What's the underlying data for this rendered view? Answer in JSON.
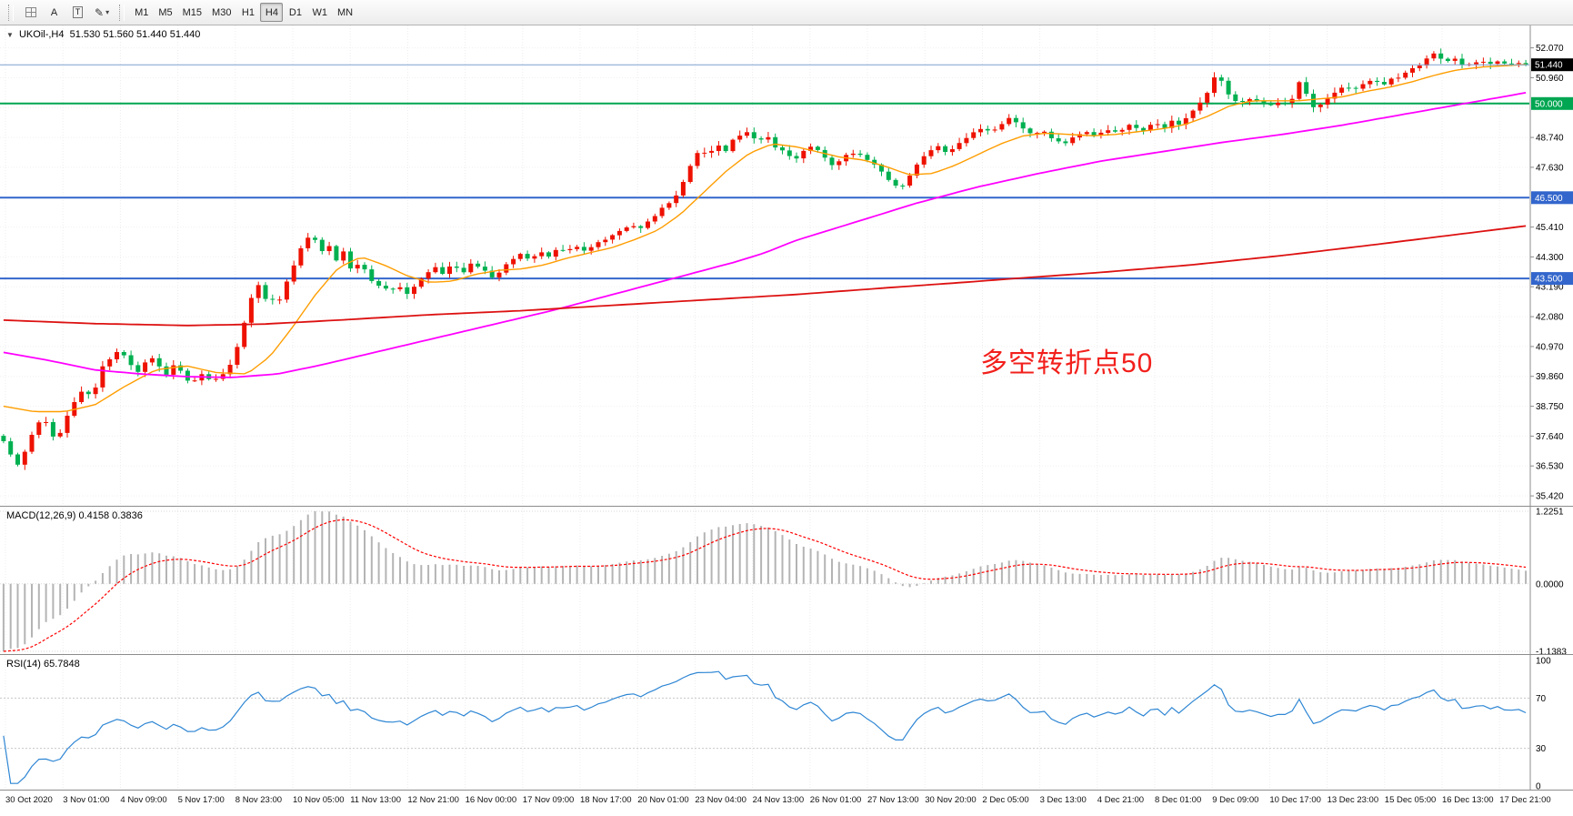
{
  "toolbar": {
    "text_tool_label": "A",
    "textbox_tool_label": "T",
    "timeframes": [
      "M1",
      "M5",
      "M15",
      "M30",
      "H1",
      "H4",
      "D1",
      "W1",
      "MN"
    ],
    "selected_timeframe": "H4"
  },
  "icons": {
    "grid": "grid-icon",
    "pen": "✎",
    "caret": "▾",
    "collapse": "▼"
  },
  "chart": {
    "symbol_title": "UKOil-,H4",
    "ohlc": "51.530 51.560 51.440 51.440",
    "annotation": {
      "text": "多空转折点50",
      "color": "#f2201c"
    }
  },
  "indicators": {
    "macd": {
      "label": "MACD(12,26,9) 0.4158 0.3836"
    },
    "rsi": {
      "label": "RSI(14) 65.7848"
    }
  },
  "chart_data": {
    "type": "candlestick",
    "symbol": "UKOil-",
    "timeframe": "H4",
    "bars": 216,
    "price_range_visible": [
      35.05,
      52.9
    ],
    "current": {
      "open": 51.53,
      "high": 51.56,
      "low": 51.44,
      "close": 51.44
    },
    "up_color": "#ee1100",
    "down_color": "#00b050",
    "close_anchors": [
      [
        0.0,
        37.4
      ],
      [
        0.005,
        36.9
      ],
      [
        0.009,
        36.55
      ],
      [
        0.014,
        37.1
      ],
      [
        0.02,
        37.9
      ],
      [
        0.026,
        38.3
      ],
      [
        0.031,
        37.8
      ],
      [
        0.035,
        37.45
      ],
      [
        0.04,
        38.2
      ],
      [
        0.047,
        38.95
      ],
      [
        0.053,
        39.4
      ],
      [
        0.058,
        39.1
      ],
      [
        0.065,
        40.2
      ],
      [
        0.072,
        40.7
      ],
      [
        0.077,
        40.9
      ],
      [
        0.083,
        40.25
      ],
      [
        0.089,
        40.0
      ],
      [
        0.095,
        40.6
      ],
      [
        0.101,
        40.35
      ],
      [
        0.107,
        39.95
      ],
      [
        0.112,
        40.3
      ],
      [
        0.118,
        39.9
      ],
      [
        0.124,
        39.6
      ],
      [
        0.13,
        39.95
      ],
      [
        0.136,
        39.65
      ],
      [
        0.142,
        39.8
      ],
      [
        0.147,
        40.1
      ],
      [
        0.151,
        40.5
      ],
      [
        0.155,
        41.2
      ],
      [
        0.159,
        42.0
      ],
      [
        0.163,
        42.8
      ],
      [
        0.167,
        43.35
      ],
      [
        0.171,
        42.6
      ],
      [
        0.175,
        42.95
      ],
      [
        0.179,
        42.35
      ],
      [
        0.184,
        43.0
      ],
      [
        0.189,
        43.8
      ],
      [
        0.194,
        44.5
      ],
      [
        0.199,
        45.0
      ],
      [
        0.203,
        45.25
      ],
      [
        0.208,
        44.4
      ],
      [
        0.213,
        44.8
      ],
      [
        0.218,
        44.15
      ],
      [
        0.223,
        44.5
      ],
      [
        0.228,
        43.8
      ],
      [
        0.234,
        44.1
      ],
      [
        0.24,
        43.5
      ],
      [
        0.247,
        43.25
      ],
      [
        0.253,
        43.0
      ],
      [
        0.259,
        43.2
      ],
      [
        0.265,
        42.95
      ],
      [
        0.271,
        43.3
      ],
      [
        0.277,
        43.65
      ],
      [
        0.283,
        43.9
      ],
      [
        0.289,
        43.7
      ],
      [
        0.295,
        44.0
      ],
      [
        0.302,
        43.7
      ],
      [
        0.308,
        44.1
      ],
      [
        0.315,
        43.8
      ],
      [
        0.322,
        43.55
      ],
      [
        0.328,
        43.85
      ],
      [
        0.333,
        44.2
      ],
      [
        0.339,
        44.4
      ],
      [
        0.345,
        44.15
      ],
      [
        0.352,
        44.5
      ],
      [
        0.358,
        44.3
      ],
      [
        0.364,
        44.6
      ],
      [
        0.369,
        44.45
      ],
      [
        0.375,
        44.7
      ],
      [
        0.382,
        44.5
      ],
      [
        0.39,
        44.8
      ],
      [
        0.398,
        45.05
      ],
      [
        0.405,
        45.25
      ],
      [
        0.412,
        45.5
      ],
      [
        0.418,
        45.3
      ],
      [
        0.425,
        45.7
      ],
      [
        0.431,
        46.0
      ],
      [
        0.437,
        46.3
      ],
      [
        0.442,
        46.6
      ],
      [
        0.448,
        47.2
      ],
      [
        0.453,
        47.9
      ],
      [
        0.458,
        48.3
      ],
      [
        0.464,
        48.1
      ],
      [
        0.469,
        48.45
      ],
      [
        0.474,
        48.2
      ],
      [
        0.479,
        48.6
      ],
      [
        0.484,
        48.8
      ],
      [
        0.489,
        49.0
      ],
      [
        0.495,
        48.55
      ],
      [
        0.501,
        48.85
      ],
      [
        0.507,
        48.4
      ],
      [
        0.514,
        48.1
      ],
      [
        0.52,
        47.9
      ],
      [
        0.526,
        48.2
      ],
      [
        0.532,
        48.45
      ],
      [
        0.539,
        48.0
      ],
      [
        0.545,
        47.7
      ],
      [
        0.551,
        47.95
      ],
      [
        0.558,
        48.2
      ],
      [
        0.565,
        48.0
      ],
      [
        0.572,
        47.7
      ],
      [
        0.579,
        47.35
      ],
      [
        0.585,
        47.0
      ],
      [
        0.589,
        46.85
      ],
      [
        0.595,
        47.3
      ],
      [
        0.601,
        47.85
      ],
      [
        0.607,
        48.1
      ],
      [
        0.613,
        48.4
      ],
      [
        0.619,
        48.2
      ],
      [
        0.625,
        48.35
      ],
      [
        0.631,
        48.6
      ],
      [
        0.637,
        48.9
      ],
      [
        0.643,
        49.15
      ],
      [
        0.65,
        48.9
      ],
      [
        0.656,
        49.3
      ],
      [
        0.661,
        49.5
      ],
      [
        0.668,
        49.1
      ],
      [
        0.675,
        48.85
      ],
      [
        0.682,
        49.0
      ],
      [
        0.69,
        48.7
      ],
      [
        0.697,
        48.5
      ],
      [
        0.704,
        48.8
      ],
      [
        0.71,
        49.0
      ],
      [
        0.717,
        48.8
      ],
      [
        0.724,
        49.0
      ],
      [
        0.73,
        48.9
      ],
      [
        0.735,
        49.05
      ],
      [
        0.741,
        49.2
      ],
      [
        0.748,
        49.0
      ],
      [
        0.755,
        49.3
      ],
      [
        0.762,
        49.1
      ],
      [
        0.767,
        49.35
      ],
      [
        0.771,
        49.2
      ],
      [
        0.777,
        49.5
      ],
      [
        0.784,
        49.85
      ],
      [
        0.79,
        50.3
      ],
      [
        0.795,
        50.9
      ],
      [
        0.799,
        51.05
      ],
      [
        0.803,
        50.45
      ],
      [
        0.808,
        50.2
      ],
      [
        0.813,
        50.0
      ],
      [
        0.82,
        50.25
      ],
      [
        0.827,
        50.0
      ],
      [
        0.834,
        49.9
      ],
      [
        0.84,
        50.1
      ],
      [
        0.845,
        49.95
      ],
      [
        0.849,
        50.5
      ],
      [
        0.853,
        50.95
      ],
      [
        0.858,
        50.0
      ],
      [
        0.862,
        49.8
      ],
      [
        0.868,
        50.1
      ],
      [
        0.874,
        50.4
      ],
      [
        0.88,
        50.6
      ],
      [
        0.887,
        50.5
      ],
      [
        0.893,
        50.7
      ],
      [
        0.9,
        50.85
      ],
      [
        0.907,
        50.7
      ],
      [
        0.912,
        50.9
      ],
      [
        0.917,
        51.0
      ],
      [
        0.924,
        51.2
      ],
      [
        0.93,
        51.45
      ],
      [
        0.936,
        51.7
      ],
      [
        0.941,
        51.85
      ],
      [
        0.947,
        51.5
      ],
      [
        0.953,
        51.65
      ],
      [
        0.96,
        51.4
      ],
      [
        0.968,
        51.55
      ],
      [
        0.976,
        51.45
      ],
      [
        0.985,
        51.55
      ],
      [
        0.993,
        51.48
      ],
      [
        1.0,
        51.44
      ]
    ],
    "moving_averages": [
      {
        "name": "ma-fast",
        "color": "#ff9d00",
        "width": 1.4,
        "anchors": [
          [
            0,
            38.75
          ],
          [
            0.02,
            38.55
          ],
          [
            0.04,
            38.55
          ],
          [
            0.06,
            38.8
          ],
          [
            0.08,
            39.5
          ],
          [
            0.1,
            40.1
          ],
          [
            0.12,
            40.25
          ],
          [
            0.14,
            40.0
          ],
          [
            0.16,
            39.95
          ],
          [
            0.175,
            40.6
          ],
          [
            0.19,
            41.7
          ],
          [
            0.205,
            42.9
          ],
          [
            0.22,
            43.9
          ],
          [
            0.235,
            44.3
          ],
          [
            0.25,
            44.0
          ],
          [
            0.265,
            43.6
          ],
          [
            0.28,
            43.35
          ],
          [
            0.295,
            43.4
          ],
          [
            0.31,
            43.65
          ],
          [
            0.325,
            43.8
          ],
          [
            0.34,
            43.85
          ],
          [
            0.355,
            44.0
          ],
          [
            0.37,
            44.25
          ],
          [
            0.385,
            44.45
          ],
          [
            0.4,
            44.65
          ],
          [
            0.415,
            44.95
          ],
          [
            0.43,
            45.3
          ],
          [
            0.445,
            45.9
          ],
          [
            0.46,
            46.7
          ],
          [
            0.475,
            47.5
          ],
          [
            0.49,
            48.15
          ],
          [
            0.505,
            48.5
          ],
          [
            0.52,
            48.4
          ],
          [
            0.535,
            48.2
          ],
          [
            0.55,
            48.0
          ],
          [
            0.565,
            47.9
          ],
          [
            0.58,
            47.65
          ],
          [
            0.595,
            47.35
          ],
          [
            0.61,
            47.4
          ],
          [
            0.625,
            47.7
          ],
          [
            0.64,
            48.1
          ],
          [
            0.655,
            48.5
          ],
          [
            0.67,
            48.8
          ],
          [
            0.685,
            48.9
          ],
          [
            0.7,
            48.85
          ],
          [
            0.715,
            48.8
          ],
          [
            0.73,
            48.85
          ],
          [
            0.745,
            48.95
          ],
          [
            0.76,
            49.05
          ],
          [
            0.775,
            49.2
          ],
          [
            0.79,
            49.5
          ],
          [
            0.805,
            49.9
          ],
          [
            0.82,
            50.1
          ],
          [
            0.85,
            50.1
          ],
          [
            0.88,
            50.25
          ],
          [
            0.895,
            50.45
          ],
          [
            0.91,
            50.6
          ],
          [
            0.925,
            50.8
          ],
          [
            0.94,
            51.05
          ],
          [
            0.955,
            51.25
          ],
          [
            0.97,
            51.35
          ],
          [
            1.0,
            51.45
          ]
        ]
      },
      {
        "name": "ma-medium",
        "color": "#ff00ff",
        "width": 1.8,
        "anchors": [
          [
            0,
            40.75
          ],
          [
            0.03,
            40.45
          ],
          [
            0.06,
            40.1
          ],
          [
            0.09,
            39.95
          ],
          [
            0.12,
            39.85
          ],
          [
            0.15,
            39.82
          ],
          [
            0.18,
            39.95
          ],
          [
            0.21,
            40.3
          ],
          [
            0.24,
            40.7
          ],
          [
            0.27,
            41.1
          ],
          [
            0.3,
            41.5
          ],
          [
            0.33,
            41.9
          ],
          [
            0.36,
            42.3
          ],
          [
            0.39,
            42.75
          ],
          [
            0.42,
            43.2
          ],
          [
            0.45,
            43.65
          ],
          [
            0.48,
            44.1
          ],
          [
            0.5,
            44.45
          ],
          [
            0.52,
            44.9
          ],
          [
            0.56,
            45.6
          ],
          [
            0.6,
            46.3
          ],
          [
            0.64,
            46.9
          ],
          [
            0.68,
            47.4
          ],
          [
            0.72,
            47.85
          ],
          [
            0.76,
            48.2
          ],
          [
            0.8,
            48.55
          ],
          [
            0.84,
            48.85
          ],
          [
            0.88,
            49.2
          ],
          [
            0.92,
            49.6
          ],
          [
            0.96,
            50.0
          ],
          [
            1.0,
            50.4
          ]
        ]
      },
      {
        "name": "ma-slow",
        "color": "#dd1111",
        "width": 1.8,
        "anchors": [
          [
            0,
            41.95
          ],
          [
            0.06,
            41.82
          ],
          [
            0.12,
            41.75
          ],
          [
            0.17,
            41.8
          ],
          [
            0.22,
            41.95
          ],
          [
            0.28,
            42.15
          ],
          [
            0.34,
            42.3
          ],
          [
            0.4,
            42.5
          ],
          [
            0.46,
            42.7
          ],
          [
            0.52,
            42.9
          ],
          [
            0.58,
            43.15
          ],
          [
            0.63,
            43.35
          ],
          [
            0.665,
            43.5
          ],
          [
            0.72,
            43.72
          ],
          [
            0.78,
            44.0
          ],
          [
            0.84,
            44.35
          ],
          [
            0.9,
            44.75
          ],
          [
            0.95,
            45.1
          ],
          [
            1.0,
            45.45
          ]
        ]
      }
    ],
    "levels": [
      {
        "price": 51.44,
        "color": "#7f9fd0",
        "width": 1,
        "label": "51.440",
        "label_bg": "#000000"
      },
      {
        "price": 50.0,
        "color": "#00a651",
        "width": 2,
        "label": "50.000",
        "label_bg": "#00a651"
      },
      {
        "price": 46.5,
        "color": "#3366cc",
        "width": 2,
        "label": "46.500",
        "label_bg": "#3366cc"
      },
      {
        "price": 43.5,
        "color": "#3366cc",
        "width": 2,
        "label": "43.500",
        "label_bg": "#3366cc"
      }
    ],
    "price_axis": [
      {
        "label": "52.070",
        "value": 52.07
      },
      {
        "label": "50.960",
        "value": 50.96
      },
      {
        "label": "48.740",
        "value": 48.74
      },
      {
        "label": "47.630",
        "value": 47.63
      },
      {
        "label": "45.410",
        "value": 45.41
      },
      {
        "label": "44.300",
        "value": 44.3
      },
      {
        "label": "43.190",
        "value": 43.19
      },
      {
        "label": "42.080",
        "value": 42.08
      },
      {
        "label": "40.970",
        "value": 40.97
      },
      {
        "label": "39.860",
        "value": 39.86
      },
      {
        "label": "38.750",
        "value": 38.75
      },
      {
        "label": "37.640",
        "value": 37.64
      },
      {
        "label": "36.530",
        "value": 36.53
      },
      {
        "label": "35.420",
        "value": 35.42
      }
    ],
    "gridline_values": [
      52.07,
      50.96,
      49.85,
      48.74,
      47.63,
      46.52,
      45.41,
      44.3,
      43.19,
      42.08,
      40.97,
      39.86,
      38.75,
      37.64,
      36.53,
      35.42
    ],
    "date_labels": [
      "30 Oct 2020",
      "3 Nov 01:00",
      "4 Nov 09:00",
      "5 Nov 17:00",
      "8 Nov 23:00",
      "10 Nov 05:00",
      "11 Nov 13:00",
      "12 Nov 21:00",
      "16 Nov 00:00",
      "17 Nov 09:00",
      "18 Nov 17:00",
      "20 Nov 01:00",
      "23 Nov 04:00",
      "24 Nov 13:00",
      "26 Nov 01:00",
      "27 Nov 13:00",
      "30 Nov 20:00",
      "2 Dec 05:00",
      "3 Dec 13:00",
      "4 Dec 21:00",
      "8 Dec 01:00",
      "9 Dec 09:00",
      "10 Dec 17:00",
      "13 Dec 23:00",
      "15 Dec 05:00",
      "16 Dec 13:00",
      "17 Dec 21:00"
    ],
    "macd": {
      "fast": 12,
      "slow": 26,
      "signal": 9,
      "seed_offset": 1.15,
      "value": 0.4158,
      "signal_value": 0.3836,
      "hist_color": "#b4b4b4",
      "signal_color": "#ff0000",
      "axis": [
        {
          "label": "1.2251",
          "value": 1.2251
        },
        {
          "label": "0.0000",
          "value": 0
        },
        {
          "label": "-1.1383",
          "value": -1.1383
        }
      ]
    },
    "rsi": {
      "period": 14,
      "value": 65.7848,
      "color": "#2e86d4",
      "levels": [
        70,
        30
      ],
      "axis": [
        {
          "label": "100",
          "value": 100
        },
        {
          "label": "70",
          "value": 70
        },
        {
          "label": "30",
          "value": 30
        },
        {
          "label": "0",
          "value": 0
        }
      ]
    }
  }
}
